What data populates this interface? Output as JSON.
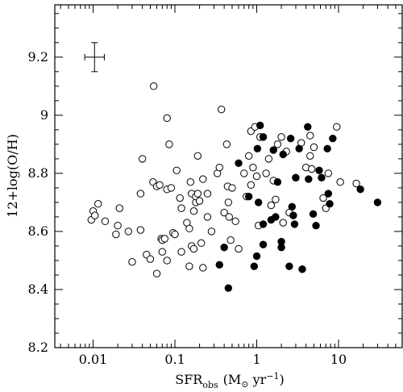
{
  "chart_data": {
    "type": "scatter",
    "title": "",
    "x_axis": {
      "scale": "log",
      "lim": [
        0.0034,
        60
      ],
      "tick_labels": [
        {
          "value": 0.01,
          "label": "0.01"
        },
        {
          "value": 0.1,
          "label": "0.1"
        },
        {
          "value": 1,
          "label": "1"
        },
        {
          "value": 10,
          "label": "10"
        }
      ]
    },
    "xlabel": {
      "main": "SFR",
      "sub": "obs",
      "units": "(M",
      "sun": "⊙",
      "units2": " yr",
      "exp": "−1",
      "close": ")"
    },
    "y_axis": {
      "scale": "linear",
      "lim": [
        8.2,
        9.38
      ],
      "tick_labels": [
        {
          "value": 8.2,
          "label": "8.2"
        },
        {
          "value": 8.4,
          "label": "8.4"
        },
        {
          "value": 8.6,
          "label": "8.6"
        },
        {
          "value": 8.8,
          "label": "8.8"
        },
        {
          "value": 9.0,
          "label": "9"
        },
        {
          "value": 9.2,
          "label": "9.2"
        }
      ]
    },
    "ylabel": "12+log(O/H)",
    "error_bar": {
      "x": 0.0104,
      "y": 9.2,
      "dx_low": 0.0079,
      "dx_high": 0.0137,
      "dy": 0.05
    },
    "series": [
      {
        "marker": "open-circle",
        "points": [
          [
            0.0095,
            8.64
          ],
          [
            0.01,
            8.67
          ],
          [
            0.0105,
            8.655
          ],
          [
            0.0115,
            8.695
          ],
          [
            0.014,
            8.635
          ],
          [
            0.019,
            8.59
          ],
          [
            0.02,
            8.62
          ],
          [
            0.021,
            8.68
          ],
          [
            0.027,
            8.6
          ],
          [
            0.03,
            8.495
          ],
          [
            0.038,
            8.605
          ],
          [
            0.038,
            8.73
          ],
          [
            0.04,
            8.85
          ],
          [
            0.045,
            8.52
          ],
          [
            0.05,
            8.505
          ],
          [
            0.054,
            8.77
          ],
          [
            0.055,
            9.1
          ],
          [
            0.06,
            8.755
          ],
          [
            0.06,
            8.455
          ],
          [
            0.065,
            8.76
          ],
          [
            0.068,
            8.575
          ],
          [
            0.07,
            8.57
          ],
          [
            0.07,
            8.53
          ],
          [
            0.075,
            8.575
          ],
          [
            0.08,
            8.5
          ],
          [
            0.08,
            8.745
          ],
          [
            0.08,
            8.99
          ],
          [
            0.085,
            8.9
          ],
          [
            0.09,
            8.75
          ],
          [
            0.095,
            8.595
          ],
          [
            0.1,
            8.59
          ],
          [
            0.105,
            8.81
          ],
          [
            0.115,
            8.715
          ],
          [
            0.12,
            8.68
          ],
          [
            0.12,
            8.53
          ],
          [
            0.14,
            8.63
          ],
          [
            0.15,
            8.48
          ],
          [
            0.15,
            8.61
          ],
          [
            0.155,
            8.77
          ],
          [
            0.16,
            8.73
          ],
          [
            0.16,
            8.55
          ],
          [
            0.17,
            8.67
          ],
          [
            0.17,
            8.54
          ],
          [
            0.18,
            8.7
          ],
          [
            0.18,
            8.72
          ],
          [
            0.19,
            8.86
          ],
          [
            0.19,
            8.73
          ],
          [
            0.2,
            8.705
          ],
          [
            0.21,
            8.56
          ],
          [
            0.22,
            8.475
          ],
          [
            0.22,
            8.78
          ],
          [
            0.25,
            8.73
          ],
          [
            0.25,
            8.65
          ],
          [
            0.28,
            8.6
          ],
          [
            0.33,
            8.8
          ],
          [
            0.35,
            8.82
          ],
          [
            0.37,
            9.02
          ],
          [
            0.4,
            8.665
          ],
          [
            0.43,
            8.9
          ],
          [
            0.44,
            8.755
          ],
          [
            0.45,
            8.7
          ],
          [
            0.46,
            8.65
          ],
          [
            0.48,
            8.57
          ],
          [
            0.5,
            8.75
          ],
          [
            0.55,
            8.635
          ],
          [
            0.6,
            8.54
          ],
          [
            0.7,
            8.8
          ],
          [
            0.75,
            8.72
          ],
          [
            0.8,
            8.86
          ],
          [
            0.85,
            8.945
          ],
          [
            0.85,
            8.76
          ],
          [
            0.9,
            8.82
          ],
          [
            0.95,
            8.96
          ],
          [
            1.0,
            8.79
          ],
          [
            1.05,
            8.62
          ],
          [
            1.1,
            8.925
          ],
          [
            1.3,
            8.8
          ],
          [
            1.4,
            8.85
          ],
          [
            1.5,
            8.69
          ],
          [
            1.6,
            8.775
          ],
          [
            1.7,
            8.71
          ],
          [
            1.8,
            8.9
          ],
          [
            2.0,
            8.925
          ],
          [
            2.1,
            8.63
          ],
          [
            2.3,
            8.875
          ],
          [
            2.5,
            8.665
          ],
          [
            3.0,
            8.785
          ],
          [
            3.5,
            8.905
          ],
          [
            4.0,
            8.82
          ],
          [
            4.5,
            8.93
          ],
          [
            4.5,
            8.86
          ],
          [
            4.7,
            8.815
          ],
          [
            5.0,
            8.89
          ],
          [
            6.5,
            8.715
          ],
          [
            7.0,
            8.68
          ],
          [
            7.5,
            8.8
          ],
          [
            9.5,
            8.96
          ],
          [
            10.5,
            8.77
          ],
          [
            16.5,
            8.765
          ]
        ]
      },
      {
        "marker": "filled-circle",
        "points": [
          [
            0.35,
            8.485
          ],
          [
            0.4,
            8.545
          ],
          [
            0.45,
            8.405
          ],
          [
            0.6,
            8.835
          ],
          [
            0.8,
            8.72
          ],
          [
            0.93,
            8.48
          ],
          [
            1.0,
            8.515
          ],
          [
            1.02,
            8.885
          ],
          [
            1.05,
            8.7
          ],
          [
            1.1,
            8.965
          ],
          [
            1.2,
            8.625
          ],
          [
            1.2,
            8.555
          ],
          [
            1.2,
            8.925
          ],
          [
            1.5,
            8.64
          ],
          [
            1.6,
            8.88
          ],
          [
            1.7,
            8.65
          ],
          [
            1.8,
            8.77
          ],
          [
            2.0,
            8.565
          ],
          [
            2.0,
            8.545
          ],
          [
            2.1,
            8.865
          ],
          [
            2.5,
            8.48
          ],
          [
            2.6,
            8.92
          ],
          [
            2.7,
            8.685
          ],
          [
            2.8,
            8.655
          ],
          [
            2.9,
            8.625
          ],
          [
            3.0,
            8.785
          ],
          [
            3.3,
            8.885
          ],
          [
            3.6,
            8.47
          ],
          [
            4.2,
            8.96
          ],
          [
            4.3,
            8.78
          ],
          [
            4.9,
            8.66
          ],
          [
            5.3,
            8.62
          ],
          [
            5.8,
            8.81
          ],
          [
            6.2,
            8.785
          ],
          [
            7.3,
            8.885
          ],
          [
            7.5,
            8.73
          ],
          [
            7.8,
            8.695
          ],
          [
            8.5,
            8.92
          ],
          [
            18.5,
            8.745
          ],
          [
            30.0,
            8.7
          ]
        ]
      }
    ]
  }
}
